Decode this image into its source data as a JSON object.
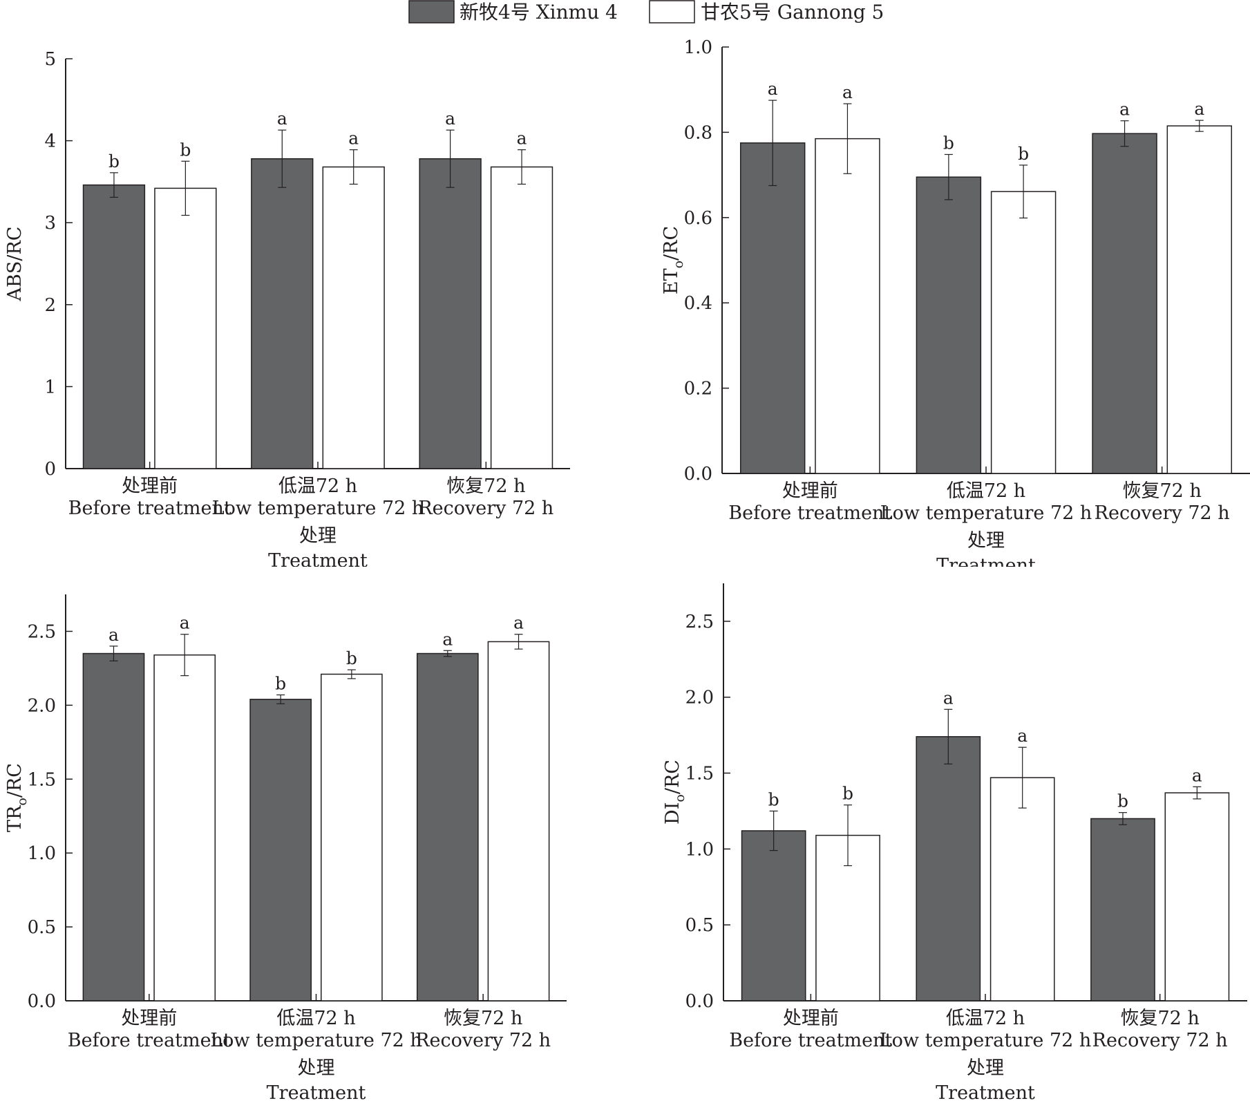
{
  "legend": {
    "position": "top-center",
    "items": [
      {
        "label": "新牧4号 Xinmu 4",
        "color": "#636466"
      },
      {
        "label": "甘农5号 Gannong 5",
        "color": "#ffffff"
      }
    ]
  },
  "chart_data": [
    {
      "type": "bar",
      "categories": [
        "处理前",
        "低温72 h",
        "恢复72 h"
      ],
      "categories_en": [
        "Before treatment",
        "Low temperature 72 h",
        "Recovery 72 h"
      ],
      "xlabel": "处理",
      "xlabel_en": "Treatment",
      "ylabel_main": "ABS/RC",
      "ylabel_sub": "",
      "ylabel_tail": "",
      "ylim": [
        0,
        5
      ],
      "yticks": [
        "0",
        "1",
        "2",
        "3",
        "4",
        "5"
      ],
      "series": [
        {
          "name": "新牧4号 Xinmu 4",
          "values": [
            3.46,
            3.78,
            3.78
          ],
          "errors": [
            0.15,
            0.35,
            0.35
          ],
          "letters": [
            "b",
            "a",
            "a"
          ]
        },
        {
          "name": "甘农5号 Gannong 5",
          "values": [
            3.42,
            3.68,
            3.68
          ],
          "errors": [
            0.33,
            0.21,
            0.21
          ],
          "letters": [
            "b",
            "a",
            "a"
          ]
        }
      ]
    },
    {
      "type": "bar",
      "categories": [
        "处理前",
        "低温72 h",
        "恢复72 h"
      ],
      "categories_en": [
        "Before treatment",
        "Low temperature 72 h",
        "Recovery 72 h"
      ],
      "xlabel": "处理",
      "xlabel_en": "Treatment",
      "ylabel_main": "ET",
      "ylabel_sub": "o",
      "ylabel_tail": "/RC",
      "ylim": [
        0,
        1.0
      ],
      "yticks": [
        "0.0",
        "0.2",
        "0.4",
        "0.6",
        "0.8",
        "1.0"
      ],
      "series": [
        {
          "name": "新牧4号 Xinmu 4",
          "values": [
            0.775,
            0.695,
            0.797
          ],
          "errors": [
            0.1,
            0.053,
            0.03
          ],
          "letters": [
            "a",
            "b",
            "a"
          ]
        },
        {
          "name": "甘农5号 Gannong 5",
          "values": [
            0.785,
            0.661,
            0.815
          ],
          "errors": [
            0.082,
            0.062,
            0.013
          ],
          "letters": [
            "a",
            "b",
            "a"
          ]
        }
      ]
    },
    {
      "type": "bar",
      "categories": [
        "处理前",
        "低温72 h",
        "恢复72 h"
      ],
      "categories_en": [
        "Before treatment",
        "Low temperature 72 h",
        "Recovery 72 h"
      ],
      "xlabel": "处理",
      "xlabel_en": "Treatment",
      "ylabel_main": "TR",
      "ylabel_sub": "o",
      "ylabel_tail": "/RC",
      "ylim": [
        0,
        2.75
      ],
      "yticks": [
        "0.0",
        "0.5",
        "1.0",
        "1.5",
        "2.0",
        "2.5"
      ],
      "series": [
        {
          "name": "新牧4号 Xinmu 4",
          "values": [
            2.35,
            2.04,
            2.35
          ],
          "errors": [
            0.05,
            0.03,
            0.02
          ],
          "letters": [
            "a",
            "b",
            "a"
          ]
        },
        {
          "name": "甘农5号 Gannong 5",
          "values": [
            2.34,
            2.21,
            2.43
          ],
          "errors": [
            0.14,
            0.03,
            0.05
          ],
          "letters": [
            "a",
            "b",
            "a"
          ]
        }
      ]
    },
    {
      "type": "bar",
      "categories": [
        "处理前",
        "低温72 h",
        "恢复72 h"
      ],
      "categories_en": [
        "Before treatment",
        "Low temperature 72 h",
        "Recovery 72 h"
      ],
      "xlabel": "处理",
      "xlabel_en": "Treatment",
      "ylabel_main": "DI",
      "ylabel_sub": "o",
      "ylabel_tail": "/RC",
      "ylim": [
        0,
        2.75
      ],
      "yticks": [
        "0.0",
        "0.5",
        "1.0",
        "1.5",
        "2.0",
        "2.5"
      ],
      "series": [
        {
          "name": "新牧4号 Xinmu 4",
          "values": [
            1.12,
            1.74,
            1.2
          ],
          "errors": [
            0.13,
            0.18,
            0.04
          ],
          "letters": [
            "b",
            "a",
            "b"
          ]
        },
        {
          "name": "甘农5号 Gannong 5",
          "values": [
            1.09,
            1.47,
            1.37
          ],
          "errors": [
            0.2,
            0.2,
            0.04
          ],
          "letters": [
            "b",
            "a",
            "a"
          ]
        }
      ]
    }
  ]
}
